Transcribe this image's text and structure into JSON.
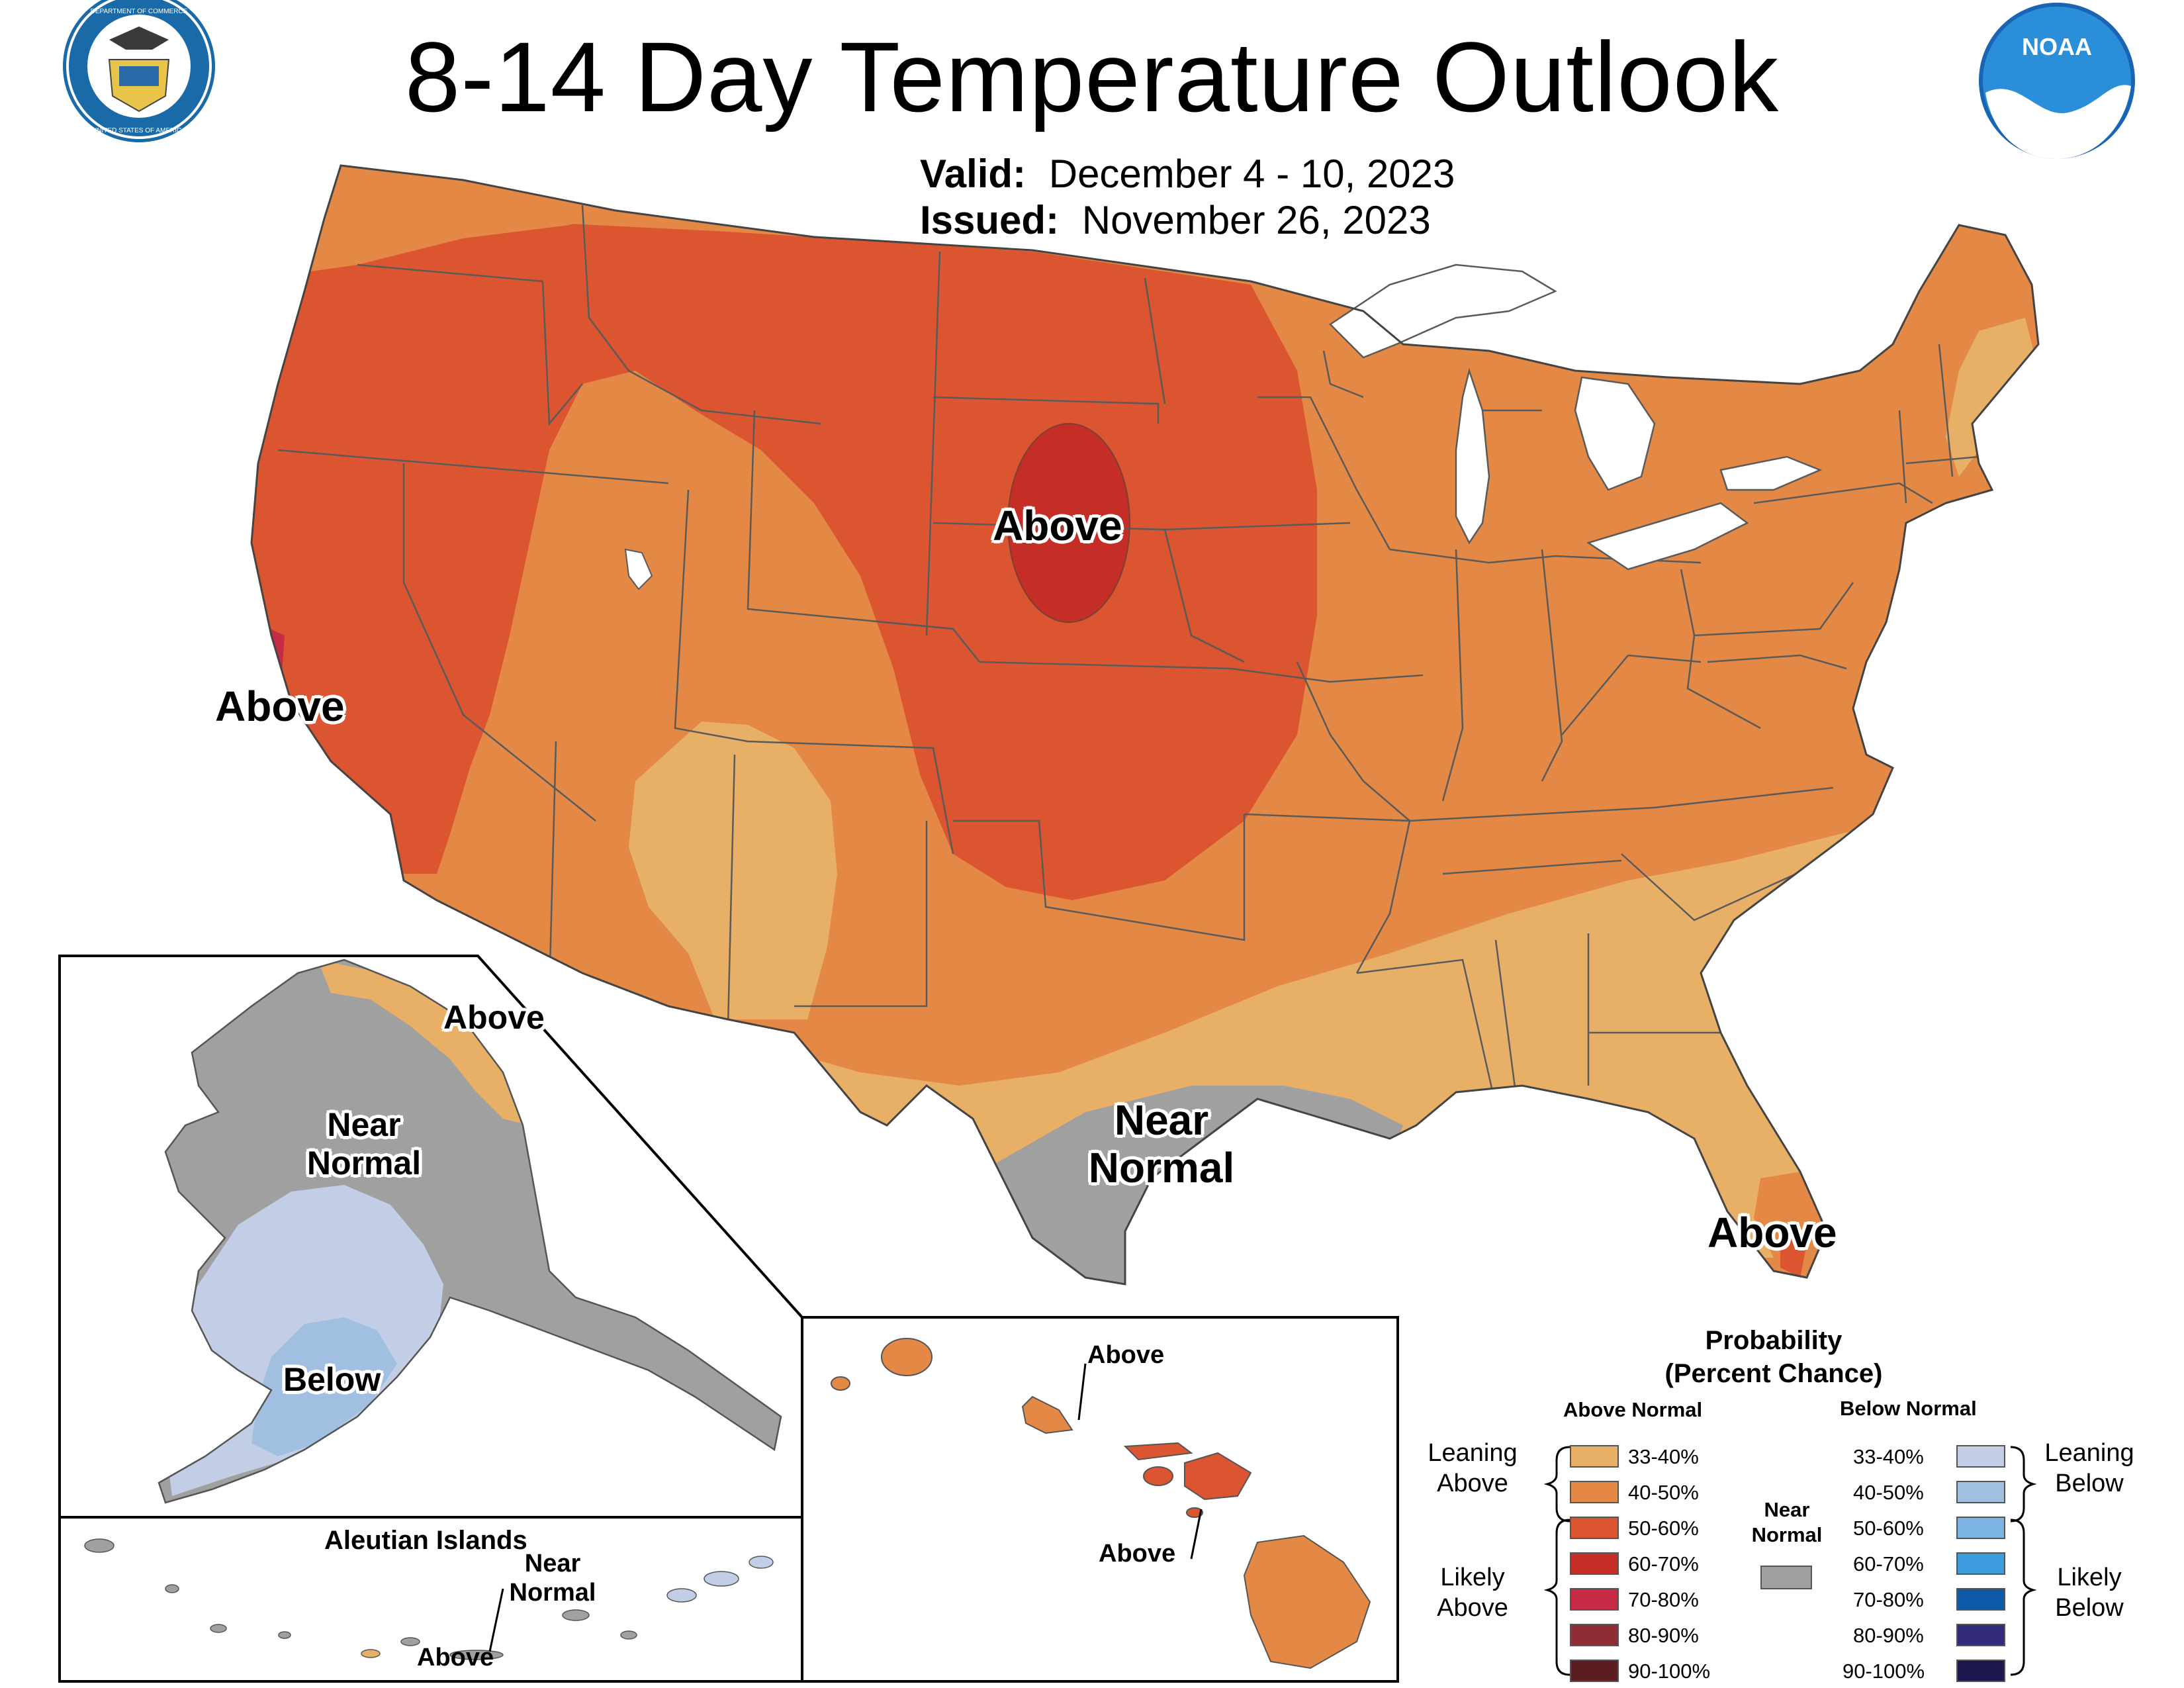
{
  "header": {
    "title": "8-14 Day Temperature Outlook",
    "valid_label": "Valid:",
    "valid_value": "December 4 - 10, 2023",
    "issued_label": "Issued:",
    "issued_value": "November 26, 2023",
    "left_logo_text_top": "DEPARTMENT OF COMMERCE",
    "left_logo_text_bottom": "UNITED STATES OF AMERICA",
    "right_logo_text": "NOAA"
  },
  "conus_labels": {
    "west_above": "Above",
    "central_above": "Above",
    "texas_near_normal_1": "Near",
    "texas_near_normal_2": "Normal",
    "florida_above": "Above"
  },
  "alaska_labels": {
    "above": "Above",
    "near_normal_1": "Near",
    "near_normal_2": "Normal",
    "below": "Below"
  },
  "aleutian_labels": {
    "title": "Aleutian Islands",
    "near_normal_1": "Near",
    "near_normal_2": "Normal",
    "above": "Above"
  },
  "hawaii_labels": {
    "above_top": "Above",
    "above_bottom": "Above"
  },
  "legend": {
    "title_line1": "Probability",
    "title_line2": "(Percent Chance)",
    "above_heading": "Above Normal",
    "below_heading": "Below Normal",
    "near_normal_1": "Near",
    "near_normal_2": "Normal",
    "near_normal_color": "#a0a0a0",
    "leaning_above_1": "Leaning",
    "leaning_above_2": "Above",
    "likely_above_1": "Likely",
    "likely_above_2": "Above",
    "leaning_below_1": "Leaning",
    "leaning_below_2": "Below",
    "likely_below_1": "Likely",
    "likely_below_2": "Below",
    "above_classes": [
      {
        "range": "33-40%",
        "color": "#e8b067"
      },
      {
        "range": "40-50%",
        "color": "#e48945"
      },
      {
        "range": "50-60%",
        "color": "#db5530"
      },
      {
        "range": "60-70%",
        "color": "#c52d27"
      },
      {
        "range": "70-80%",
        "color": "#c72a45"
      },
      {
        "range": "80-90%",
        "color": "#8f2d37"
      },
      {
        "range": "90-100%",
        "color": "#5b1d1f"
      }
    ],
    "below_classes": [
      {
        "range": "33-40%",
        "color": "#c2cde6"
      },
      {
        "range": "40-50%",
        "color": "#a1c0e1"
      },
      {
        "range": "50-60%",
        "color": "#7bb3e3"
      },
      {
        "range": "60-70%",
        "color": "#3d9be0"
      },
      {
        "range": "70-80%",
        "color": "#0e5aa6"
      },
      {
        "range": "80-90%",
        "color": "#322b7c"
      },
      {
        "range": "90-100%",
        "color": "#1b1850"
      }
    ]
  }
}
